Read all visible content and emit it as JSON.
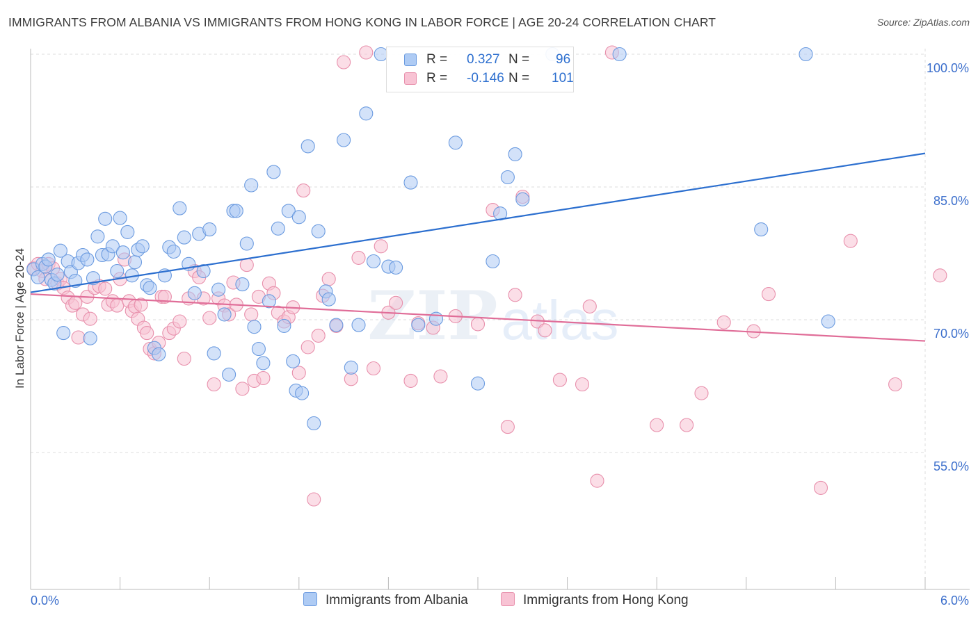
{
  "title": "IMMIGRANTS FROM ALBANIA VS IMMIGRANTS FROM HONG KONG IN LABOR FORCE | AGE 20-24 CORRELATION CHART",
  "source": "Source: ZipAtlas.com",
  "watermark": {
    "zip": "ZIP",
    "atlas": "atlas"
  },
  "legend": {
    "r_label": "R =",
    "n_label": "N =",
    "series": [
      {
        "name": "Immigrants from Albania",
        "r": "0.327",
        "n": "96",
        "fill": "#aecbf4",
        "stroke": "#6b9be0"
      },
      {
        "name": "Immigrants from Hong Kong",
        "r": "-0.146",
        "n": "101",
        "fill": "#f8c3d4",
        "stroke": "#e890ac"
      }
    ]
  },
  "colors": {
    "blue_line": "#2c6fcf",
    "pink_line": "#e06d98",
    "axis_text": "#3c6fcc",
    "grid": "#dddddd"
  },
  "chart_data": {
    "type": "scatter",
    "title": "IMMIGRANTS FROM ALBANIA VS IMMIGRANTS FROM HONG KONG IN LABOR FORCE | AGE 20-24 CORRELATION CHART",
    "xlabel": "",
    "ylabel": "In Labor Force | Age 20-24",
    "xlim": [
      0,
      6
    ],
    "ylim": [
      40,
      101.5
    ],
    "x_ticks_labels": [
      "0.0%",
      "6.0%"
    ],
    "y_ticks": [
      55,
      70,
      85,
      100
    ],
    "y_ticks_labels": [
      "55.0%",
      "70.0%",
      "85.0%",
      "100.0%"
    ],
    "grid": true,
    "legend_position": "top-center",
    "series": [
      {
        "name": "Immigrants from Albania",
        "color": "#6b9be0",
        "trend": {
          "x": [
            0,
            6
          ],
          "y": [
            73.1,
            88.8
          ]
        },
        "points": [
          [
            0.02,
            75.7
          ],
          [
            0.05,
            74.8
          ],
          [
            0.08,
            76.3
          ],
          [
            0.1,
            76.0
          ],
          [
            0.12,
            76.8
          ],
          [
            0.14,
            74.5
          ],
          [
            0.16,
            74.1
          ],
          [
            0.18,
            75.1
          ],
          [
            0.2,
            77.8
          ],
          [
            0.22,
            68.5
          ],
          [
            0.25,
            76.6
          ],
          [
            0.27,
            75.4
          ],
          [
            0.3,
            74.4
          ],
          [
            0.32,
            76.4
          ],
          [
            0.35,
            77.3
          ],
          [
            0.38,
            76.8
          ],
          [
            0.4,
            67.9
          ],
          [
            0.42,
            74.7
          ],
          [
            0.45,
            79.4
          ],
          [
            0.48,
            77.3
          ],
          [
            0.5,
            81.4
          ],
          [
            0.52,
            77.4
          ],
          [
            0.55,
            78.3
          ],
          [
            0.58,
            75.5
          ],
          [
            0.6,
            81.5
          ],
          [
            0.62,
            77.6
          ],
          [
            0.65,
            79.9
          ],
          [
            0.68,
            75.0
          ],
          [
            0.7,
            76.5
          ],
          [
            0.72,
            77.9
          ],
          [
            0.75,
            78.3
          ],
          [
            0.78,
            73.9
          ],
          [
            0.8,
            73.6
          ],
          [
            0.83,
            66.8
          ],
          [
            0.86,
            66.1
          ],
          [
            0.9,
            75.0
          ],
          [
            0.93,
            78.2
          ],
          [
            0.96,
            77.7
          ],
          [
            1.0,
            82.6
          ],
          [
            1.03,
            79.3
          ],
          [
            1.06,
            76.3
          ],
          [
            1.1,
            73.0
          ],
          [
            1.13,
            79.7
          ],
          [
            1.16,
            75.5
          ],
          [
            1.2,
            80.2
          ],
          [
            1.23,
            66.2
          ],
          [
            1.26,
            73.4
          ],
          [
            1.3,
            70.6
          ],
          [
            1.33,
            63.8
          ],
          [
            1.36,
            82.3
          ],
          [
            1.38,
            82.3
          ],
          [
            1.42,
            74.0
          ],
          [
            1.45,
            78.6
          ],
          [
            1.48,
            85.2
          ],
          [
            1.5,
            69.2
          ],
          [
            1.53,
            66.7
          ],
          [
            1.56,
            65.1
          ],
          [
            1.6,
            72.1
          ],
          [
            1.63,
            86.7
          ],
          [
            1.66,
            80.3
          ],
          [
            1.7,
            69.3
          ],
          [
            1.73,
            82.3
          ],
          [
            1.76,
            65.3
          ],
          [
            1.78,
            62.0
          ],
          [
            1.8,
            81.6
          ],
          [
            1.82,
            61.7
          ],
          [
            1.86,
            89.6
          ],
          [
            1.9,
            58.3
          ],
          [
            1.93,
            80.0
          ],
          [
            1.98,
            73.2
          ],
          [
            2.0,
            72.3
          ],
          [
            2.05,
            69.4
          ],
          [
            2.1,
            90.3
          ],
          [
            2.15,
            64.6
          ],
          [
            2.2,
            69.4
          ],
          [
            2.25,
            93.3
          ],
          [
            2.3,
            76.6
          ],
          [
            2.35,
            100.0
          ],
          [
            2.4,
            76.0
          ],
          [
            2.45,
            75.9
          ],
          [
            2.55,
            85.5
          ],
          [
            2.6,
            69.4
          ],
          [
            2.72,
            70.1
          ],
          [
            2.85,
            90.0
          ],
          [
            3.0,
            62.8
          ],
          [
            3.1,
            76.6
          ],
          [
            3.15,
            82.0
          ],
          [
            3.2,
            86.1
          ],
          [
            3.25,
            88.7
          ],
          [
            3.3,
            83.6
          ],
          [
            3.5,
            100.0
          ],
          [
            3.95,
            100.0
          ],
          [
            4.9,
            80.2
          ],
          [
            5.2,
            100.0
          ],
          [
            5.35,
            69.8
          ]
        ]
      },
      {
        "name": "Immigrants from Hong Kong",
        "color": "#e890ac",
        "trend": {
          "x": [
            0,
            6
          ],
          "y": [
            72.9,
            67.6
          ]
        },
        "points": [
          [
            0.02,
            75.8
          ],
          [
            0.05,
            76.3
          ],
          [
            0.08,
            75.5
          ],
          [
            0.1,
            74.6
          ],
          [
            0.12,
            76.3
          ],
          [
            0.15,
            75.8
          ],
          [
            0.18,
            74.1
          ],
          [
            0.2,
            74.6
          ],
          [
            0.22,
            73.6
          ],
          [
            0.25,
            72.5
          ],
          [
            0.28,
            71.6
          ],
          [
            0.3,
            71.9
          ],
          [
            0.32,
            68.0
          ],
          [
            0.35,
            70.6
          ],
          [
            0.38,
            72.6
          ],
          [
            0.4,
            70.1
          ],
          [
            0.43,
            73.6
          ],
          [
            0.46,
            73.8
          ],
          [
            0.5,
            73.5
          ],
          [
            0.52,
            71.7
          ],
          [
            0.55,
            72.1
          ],
          [
            0.58,
            71.6
          ],
          [
            0.6,
            74.6
          ],
          [
            0.63,
            76.8
          ],
          [
            0.66,
            72.1
          ],
          [
            0.68,
            71.0
          ],
          [
            0.7,
            71.5
          ],
          [
            0.72,
            70.1
          ],
          [
            0.74,
            71.7
          ],
          [
            0.76,
            69.1
          ],
          [
            0.78,
            68.5
          ],
          [
            0.8,
            66.7
          ],
          [
            0.83,
            66.2
          ],
          [
            0.86,
            67.4
          ],
          [
            0.88,
            72.6
          ],
          [
            0.9,
            72.6
          ],
          [
            0.93,
            68.5
          ],
          [
            0.96,
            69.0
          ],
          [
            1.0,
            69.8
          ],
          [
            1.03,
            65.6
          ],
          [
            1.06,
            72.4
          ],
          [
            1.1,
            75.5
          ],
          [
            1.13,
            74.8
          ],
          [
            1.16,
            72.4
          ],
          [
            1.2,
            70.2
          ],
          [
            1.23,
            62.7
          ],
          [
            1.26,
            72.4
          ],
          [
            1.3,
            71.6
          ],
          [
            1.33,
            70.6
          ],
          [
            1.36,
            74.2
          ],
          [
            1.38,
            71.7
          ],
          [
            1.42,
            62.2
          ],
          [
            1.45,
            76.2
          ],
          [
            1.48,
            70.6
          ],
          [
            1.5,
            63.1
          ],
          [
            1.53,
            72.6
          ],
          [
            1.56,
            63.4
          ],
          [
            1.6,
            74.1
          ],
          [
            1.63,
            73.0
          ],
          [
            1.66,
            70.8
          ],
          [
            1.7,
            69.8
          ],
          [
            1.73,
            70.3
          ],
          [
            1.76,
            71.4
          ],
          [
            1.8,
            64.0
          ],
          [
            1.83,
            84.6
          ],
          [
            1.86,
            66.9
          ],
          [
            1.9,
            49.7
          ],
          [
            1.93,
            68.2
          ],
          [
            1.96,
            72.7
          ],
          [
            2.0,
            74.6
          ],
          [
            2.05,
            69.3
          ],
          [
            2.1,
            99.1
          ],
          [
            2.15,
            63.3
          ],
          [
            2.2,
            77.0
          ],
          [
            2.25,
            100.2
          ],
          [
            2.3,
            64.5
          ],
          [
            2.35,
            78.3
          ],
          [
            2.4,
            70.8
          ],
          [
            2.45,
            71.9
          ],
          [
            2.55,
            63.1
          ],
          [
            2.6,
            69.6
          ],
          [
            2.7,
            69.1
          ],
          [
            2.75,
            63.6
          ],
          [
            2.85,
            70.4
          ],
          [
            3.0,
            69.5
          ],
          [
            3.1,
            82.4
          ],
          [
            3.2,
            57.9
          ],
          [
            3.25,
            72.8
          ],
          [
            3.3,
            83.9
          ],
          [
            3.4,
            69.8
          ],
          [
            3.45,
            68.8
          ],
          [
            3.55,
            63.2
          ],
          [
            3.7,
            62.7
          ],
          [
            3.75,
            71.5
          ],
          [
            3.8,
            51.8
          ],
          [
            3.9,
            100.2
          ],
          [
            4.2,
            58.1
          ],
          [
            4.4,
            58.1
          ],
          [
            4.5,
            61.7
          ],
          [
            4.65,
            69.7
          ],
          [
            4.85,
            68.7
          ],
          [
            4.95,
            72.9
          ],
          [
            5.3,
            51.0
          ],
          [
            5.5,
            78.9
          ],
          [
            5.8,
            62.7
          ],
          [
            6.1,
            75.0
          ]
        ]
      }
    ]
  }
}
